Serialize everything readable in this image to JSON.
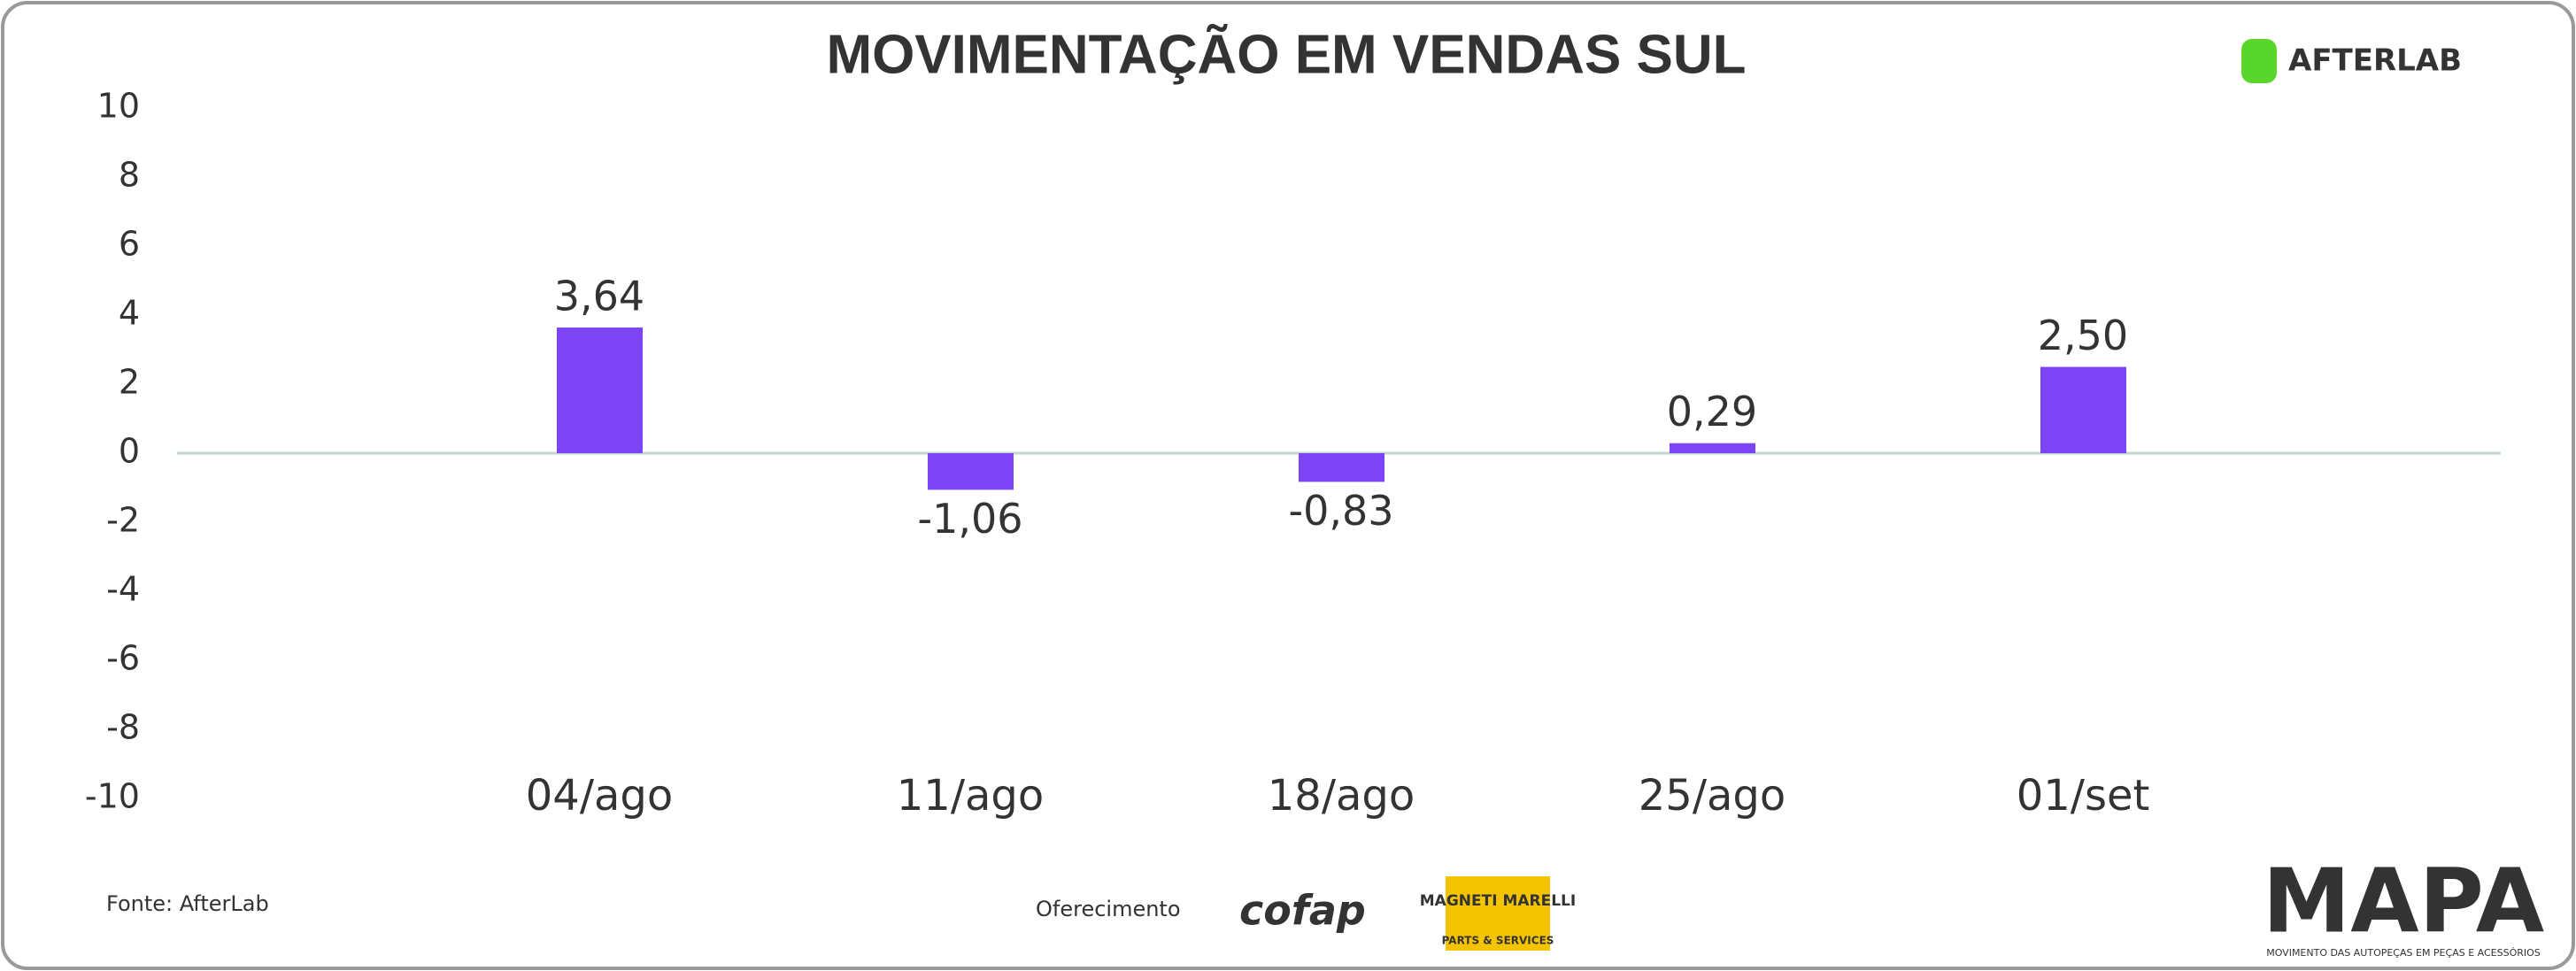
{
  "chart_data": {
    "type": "bar",
    "title": "MOVIMENTAÇÃO EM VENDAS SUL",
    "categories": [
      "04/ago",
      "11/ago",
      "18/ago",
      "25/ago",
      "01/set"
    ],
    "values": [
      3.64,
      -1.06,
      -0.83,
      0.29,
      2.5
    ],
    "value_labels": [
      "3,64",
      "-1,06",
      "-0,83",
      "0,29",
      "2,50"
    ],
    "color": "#7c44f4",
    "ylim": [
      -10,
      10
    ],
    "yticks": [
      -10,
      -8,
      -6,
      -4,
      -2,
      0,
      2,
      4,
      6,
      8,
      10
    ],
    "grid": false
  },
  "branding": {
    "logo": "AFTERLAB",
    "source": "Fonte: AfterLab",
    "sponsor_label": "Oferecimento",
    "sponsors": [
      "cofap",
      "MAGNETI MARELLI",
      "PARTS & SERVICES"
    ],
    "mapa": "MAPA",
    "mapa_subtitle": "MOVIMENTO DAS AUTOPEÇAS EM PEÇAS E ACESSÓRIOS"
  }
}
